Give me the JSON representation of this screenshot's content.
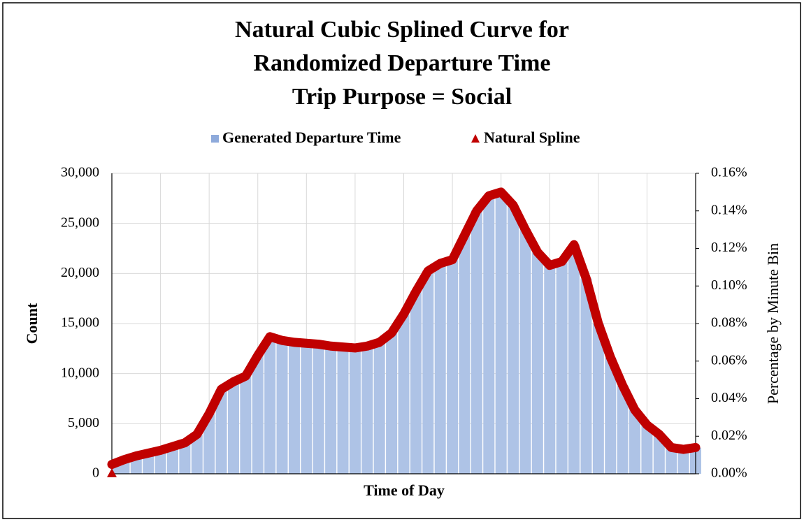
{
  "chart_data": {
    "type": "bar_line",
    "title": [
      "Natural Cubic Splined Curve for",
      "Randomized Departure Time",
      "Trip Purpose = Social"
    ],
    "xlabel": "Time of Day",
    "ylabel": "Count",
    "y2label": "Percentage by Minute Bin",
    "categories": [
      null,
      null,
      null,
      null,
      null,
      null,
      null,
      null,
      null,
      null,
      null,
      null,
      null,
      null,
      null,
      null,
      null,
      null,
      null,
      null,
      null,
      null,
      null,
      null,
      null,
      null,
      null,
      null,
      null,
      null,
      null,
      null,
      null,
      null,
      null,
      null,
      null,
      null,
      null,
      null,
      null,
      null,
      null,
      null,
      null,
      null,
      null,
      null,
      null
    ],
    "series": [
      {
        "name": "Generated Departure Time",
        "color": "#aec3e6",
        "values": [
          900,
          1400,
          1800,
          2100,
          2300,
          2700,
          3100,
          3900,
          6000,
          8400,
          9200,
          9800,
          11800,
          13700,
          13300,
          13100,
          13000,
          12900,
          12800,
          12700,
          12600,
          12800,
          13100,
          14100,
          15900,
          18200,
          20300,
          21000,
          21400,
          23800,
          26300,
          27800,
          28100,
          26800,
          24400,
          22100,
          20800,
          21200,
          22900,
          19500,
          15000,
          11600,
          8800,
          6400,
          4900,
          3900,
          2600,
          2400,
          2600
        ]
      },
      {
        "name": "Natural Spline",
        "color": "#c00000",
        "axis": "y2",
        "values": [
          0.005,
          0.0075,
          0.0095,
          0.011,
          0.0125,
          0.0145,
          0.0165,
          0.021,
          0.032,
          0.045,
          0.049,
          0.052,
          0.063,
          0.073,
          0.071,
          0.07,
          0.0695,
          0.069,
          0.068,
          0.0675,
          0.067,
          0.068,
          0.07,
          0.075,
          0.085,
          0.097,
          0.108,
          0.112,
          0.114,
          0.127,
          0.14,
          0.148,
          0.15,
          0.143,
          0.13,
          0.118,
          0.111,
          0.113,
          0.122,
          0.104,
          0.08,
          0.062,
          0.047,
          0.034,
          0.026,
          0.021,
          0.014,
          0.013,
          0.014
        ]
      }
    ],
    "ylim": [
      0,
      30000
    ],
    "yticks": [
      0,
      {
        "value": 5000,
        "label": "5,000"
      },
      {
        "value": 10000,
        "label": "10,000"
      },
      {
        "value": 15000,
        "label": "15,000"
      },
      {
        "value": 20000,
        "label": "20,000"
      },
      {
        "value": 25000,
        "label": "25,000"
      },
      {
        "value": 30000,
        "label": "30,000"
      }
    ],
    "y2lim": [
      0,
      0.16
    ],
    "y2ticks": [
      {
        "value": 0,
        "label": "0.00%"
      },
      {
        "value": 0.02,
        "label": "0.02%"
      },
      {
        "value": 0.04,
        "label": "0.04%"
      },
      {
        "value": 0.06,
        "label": "0.06%"
      },
      {
        "value": 0.08,
        "label": "0.08%"
      },
      {
        "value": 0.1,
        "label": "0.10%"
      },
      {
        "value": 0.12,
        "label": "0.12%"
      },
      {
        "value": 0.14,
        "label": "0.14%"
      },
      {
        "value": 0.16,
        "label": "0.16%"
      }
    ],
    "grid": true,
    "legend": "top"
  }
}
